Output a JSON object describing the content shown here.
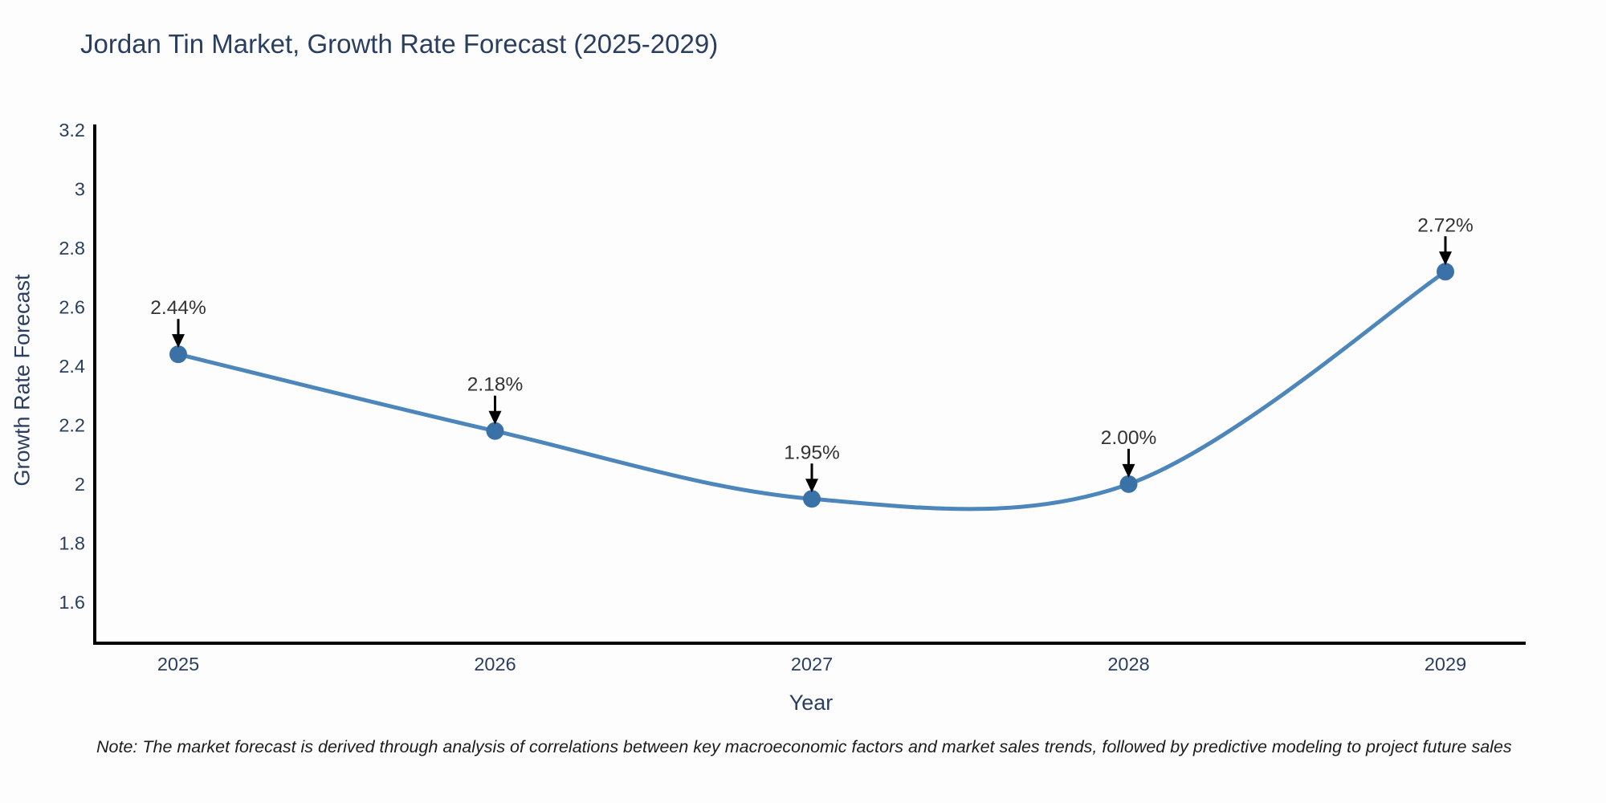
{
  "title": "Jordan Tin Market, Growth Rate Forecast (2025-2029)",
  "note": "Note: The market forecast is derived through analysis of correlations between key macroeconomic factors and market sales trends, followed by predictive modeling to project future sales",
  "chart_data": {
    "type": "line",
    "title": "Jordan Tin Market, Growth Rate Forecast (2025-2029)",
    "xlabel": "Year",
    "ylabel": "Growth Rate Forecast",
    "x": [
      2025,
      2026,
      2027,
      2028,
      2029
    ],
    "series": [
      {
        "name": "Growth Rate Forecast",
        "values": [
          2.44,
          2.18,
          1.95,
          2.0,
          2.72
        ],
        "point_labels": [
          "2.44%",
          "2.18%",
          "1.95%",
          "2.00%",
          "2.72%"
        ]
      }
    ],
    "yticks": [
      1.6,
      1.8,
      2,
      2.2,
      2.4,
      2.6,
      2.8,
      3,
      3.2
    ],
    "ylim": [
      1.45,
      3.22
    ],
    "line_shape": "spline",
    "grid": false,
    "legend": "none",
    "colors": {
      "line": "#4c86ba",
      "marker": "#3a72a8",
      "axis": "#000000",
      "tick_text": "#2a3f5f",
      "title_text": "#2a3f5f",
      "annotation": "#000000"
    }
  }
}
